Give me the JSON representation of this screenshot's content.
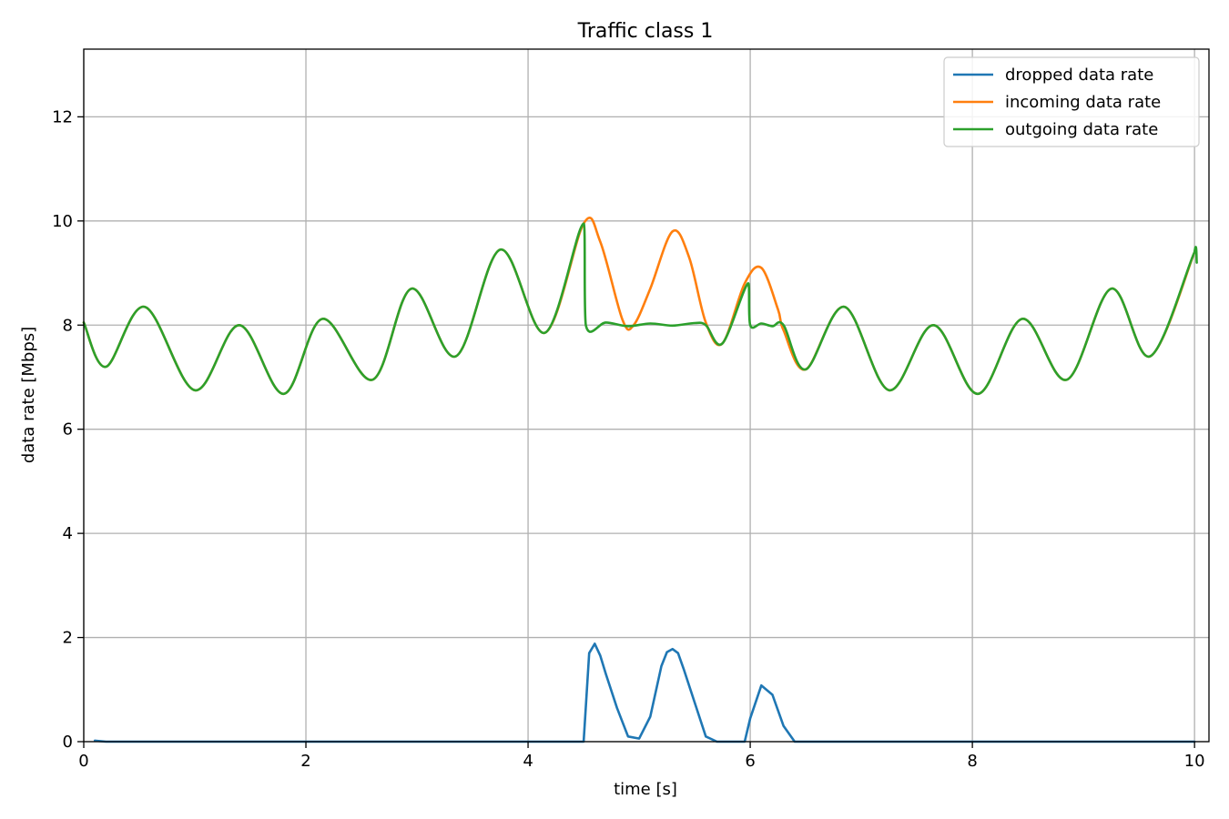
{
  "chart_data": {
    "type": "line",
    "title": "Traffic class 1",
    "xlabel": "time [s]",
    "ylabel": "data rate [Mbps]",
    "xlim": [
      0,
      10.13
    ],
    "ylim": [
      0,
      13.3
    ],
    "xticks": [
      0,
      2,
      4,
      6,
      8,
      10
    ],
    "yticks": [
      0,
      2,
      4,
      6,
      8,
      10,
      12
    ],
    "xtick_labels": [
      "0",
      "2",
      "4",
      "6",
      "8",
      "10"
    ],
    "ytick_labels": [
      "0",
      "2",
      "4",
      "6",
      "8",
      "10",
      "12"
    ],
    "grid": true,
    "legend_position": "top-right",
    "series": [
      {
        "name": "dropped data rate",
        "color": "#1f77b4",
        "points": [
          [
            0.1,
            0.02
          ],
          [
            0.2,
            0
          ],
          [
            1,
            0
          ],
          [
            2,
            0
          ],
          [
            3,
            0
          ],
          [
            4,
            0
          ],
          [
            4.5,
            0
          ],
          [
            4.55,
            1.7
          ],
          [
            4.6,
            1.88
          ],
          [
            4.65,
            1.65
          ],
          [
            4.7,
            1.3
          ],
          [
            4.8,
            0.65
          ],
          [
            4.9,
            0.1
          ],
          [
            5.0,
            0.06
          ],
          [
            5.1,
            0.48
          ],
          [
            5.2,
            1.45
          ],
          [
            5.25,
            1.72
          ],
          [
            5.3,
            1.78
          ],
          [
            5.35,
            1.7
          ],
          [
            5.4,
            1.4
          ],
          [
            5.5,
            0.75
          ],
          [
            5.6,
            0.1
          ],
          [
            5.7,
            0
          ],
          [
            5.95,
            0
          ],
          [
            6.0,
            0.45
          ],
          [
            6.1,
            1.08
          ],
          [
            6.2,
            0.9
          ],
          [
            6.3,
            0.3
          ],
          [
            6.4,
            0
          ],
          [
            7,
            0
          ],
          [
            8,
            0
          ],
          [
            9,
            0
          ],
          [
            10,
            0
          ]
        ]
      },
      {
        "name": "incoming data rate",
        "color": "#ff7f0e",
        "points": [
          [
            0.0,
            8.05
          ],
          [
            0.2,
            7.2
          ],
          [
            0.55,
            8.35
          ],
          [
            1.0,
            6.75
          ],
          [
            1.4,
            8.0
          ],
          [
            1.8,
            6.68
          ],
          [
            2.15,
            8.12
          ],
          [
            2.6,
            6.95
          ],
          [
            2.95,
            8.7
          ],
          [
            3.35,
            7.4
          ],
          [
            3.75,
            9.45
          ],
          [
            4.15,
            7.85
          ],
          [
            4.5,
            9.95
          ],
          [
            4.65,
            9.6
          ],
          [
            4.85,
            8.1
          ],
          [
            4.95,
            8.0
          ],
          [
            5.1,
            8.7
          ],
          [
            5.3,
            9.8
          ],
          [
            5.45,
            9.3
          ],
          [
            5.6,
            8.05
          ],
          [
            5.75,
            7.65
          ],
          [
            5.95,
            8.8
          ],
          [
            6.1,
            9.1
          ],
          [
            6.25,
            8.3
          ],
          [
            6.3,
            7.9
          ],
          [
            6.5,
            7.15
          ],
          [
            6.85,
            8.35
          ],
          [
            7.25,
            6.75
          ],
          [
            7.65,
            8.0
          ],
          [
            8.05,
            6.68
          ],
          [
            8.45,
            8.12
          ],
          [
            8.85,
            6.95
          ],
          [
            9.25,
            8.7
          ],
          [
            9.6,
            7.4
          ],
          [
            10.0,
            9.4
          ]
        ]
      },
      {
        "name": "outgoing data rate",
        "color": "#2ca02c",
        "points": [
          [
            0.0,
            8.05
          ],
          [
            0.2,
            7.2
          ],
          [
            0.55,
            8.35
          ],
          [
            1.0,
            6.75
          ],
          [
            1.4,
            8.0
          ],
          [
            1.8,
            6.68
          ],
          [
            2.15,
            8.12
          ],
          [
            2.6,
            6.95
          ],
          [
            2.95,
            8.7
          ],
          [
            3.35,
            7.4
          ],
          [
            3.75,
            9.45
          ],
          [
            4.15,
            7.85
          ],
          [
            4.5,
            9.95
          ],
          [
            4.52,
            8.0
          ],
          [
            4.7,
            8.05
          ],
          [
            4.9,
            7.98
          ],
          [
            5.1,
            8.03
          ],
          [
            5.3,
            7.99
          ],
          [
            5.5,
            8.04
          ],
          [
            5.6,
            8.0
          ],
          [
            5.75,
            7.65
          ],
          [
            5.98,
            8.8
          ],
          [
            6.0,
            8.0
          ],
          [
            6.1,
            8.03
          ],
          [
            6.2,
            7.98
          ],
          [
            6.3,
            8.0
          ],
          [
            6.5,
            7.15
          ],
          [
            6.85,
            8.35
          ],
          [
            7.25,
            6.75
          ],
          [
            7.65,
            8.0
          ],
          [
            8.05,
            6.68
          ],
          [
            8.45,
            8.12
          ],
          [
            8.85,
            6.95
          ],
          [
            9.25,
            8.7
          ],
          [
            9.6,
            7.4
          ],
          [
            10.0,
            9.4
          ],
          [
            10.02,
            9.2
          ]
        ]
      }
    ]
  }
}
